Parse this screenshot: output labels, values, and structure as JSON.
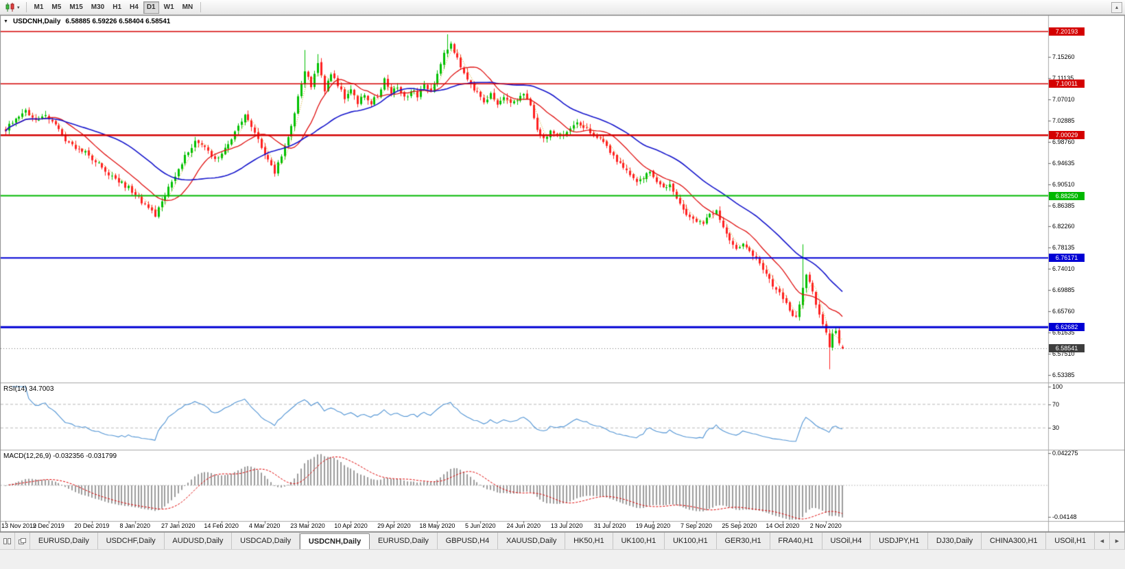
{
  "icons": {
    "dropdown": "▼",
    "caret": "▾",
    "collapse_up": "▴",
    "scroll_left": "◄",
    "scroll_right": "►"
  },
  "toolbar": {
    "timeframes": [
      {
        "label": "M1",
        "active": false
      },
      {
        "label": "M5",
        "active": false
      },
      {
        "label": "M15",
        "active": false
      },
      {
        "label": "M30",
        "active": false
      },
      {
        "label": "H1",
        "active": false
      },
      {
        "label": "H4",
        "active": false
      },
      {
        "label": "D1",
        "active": true
      },
      {
        "label": "W1",
        "active": false
      },
      {
        "label": "MN",
        "active": false
      }
    ]
  },
  "chart": {
    "title_symbol": "USDCNH,Daily",
    "title_ohlc": "6.58885 6.59226 6.58404 6.58541",
    "price_axis_labels": [
      "7.15260",
      "7.11135",
      "7.07010",
      "7.02885",
      "6.98760",
      "6.94635",
      "6.90510",
      "6.86385",
      "6.82260",
      "6.78135",
      "6.74010",
      "6.69885",
      "6.65760",
      "6.61635",
      "6.57510",
      "6.53385"
    ],
    "hlines": [
      {
        "label": "7.20193",
        "price": 7.20193,
        "color": "#d40000",
        "width": 1.5
      },
      {
        "label": "7.10011",
        "price": 7.10011,
        "color": "#d40000",
        "width": 1.5
      },
      {
        "label": "7.00029",
        "price": 7.00029,
        "color": "#d40000",
        "width": 2.5
      },
      {
        "label": "6.88250",
        "price": 6.8825,
        "color": "#00b800",
        "width": 2
      },
      {
        "label": "6.76171",
        "price": 6.76171,
        "color": "#0000d4",
        "width": 2
      },
      {
        "label": "6.62682",
        "price": 6.62682,
        "color": "#0000d4",
        "width": 3
      }
    ],
    "current_price": {
      "label": "6.58541",
      "price": 6.58541,
      "color": "#3d3d3d"
    },
    "date_labels": [
      "13 Nov 2019",
      "2 Dec 2019",
      "20 Dec 2019",
      "8 Jan 2020",
      "27 Jan 2020",
      "14 Feb 2020",
      "4 Mar 2020",
      "23 Mar 2020",
      "10 Apr 2020",
      "29 Apr 2020",
      "18 May 2020",
      "5 Jun 2020",
      "24 Jun 2020",
      "13 Jul 2020",
      "31 Jul 2020",
      "19 Aug 2020",
      "7 Sep 2020",
      "25 Sep 2020",
      "14 Oct 2020",
      "2 Nov 2020"
    ]
  },
  "rsi": {
    "label": "RSI(14) 34.7003",
    "period": 14,
    "value": 34.7003,
    "line_color": "#4f93d4",
    "levels": [
      {
        "label": "100",
        "value": 100
      },
      {
        "label": "70",
        "value": 70
      },
      {
        "label": "30",
        "value": 30
      }
    ]
  },
  "macd": {
    "label": "MACD(12,26,9) -0.032356 -0.031799",
    "fast": 12,
    "slow": 26,
    "signal": 9,
    "macd_value": -0.032356,
    "signal_value": -0.031799,
    "top_label": "0.042275",
    "top_value": 0.042275,
    "bottom_label": "-0.04148",
    "bottom_value": -0.04148,
    "hist_color": "#9c9c9c",
    "signal_color": "#e00000"
  },
  "chart_data": {
    "type": "candlestick",
    "symbol": "USDCNH",
    "period": "Daily",
    "bars": 253,
    "label_every_bars": 13,
    "ohlc_current": {
      "open": 6.58885,
      "high": 6.59226,
      "low": 6.58404,
      "close": 6.58541
    },
    "colors": {
      "up": "#00C000",
      "down": "#FF2020"
    },
    "price_range": {
      "max": 7.2339,
      "min": 6.5192
    },
    "ma": [
      {
        "name": "ma-fast",
        "period": 4,
        "color": "#C8A000",
        "style": "dot",
        "width": 1
      },
      {
        "name": "ma-mid",
        "period": 13,
        "color": "#E01010",
        "style": "solid",
        "width": 1.3
      },
      {
        "name": "ma-slow",
        "period": 34,
        "color": "#1414CC",
        "style": "solid",
        "width": 1.6
      }
    ],
    "wick_events": [
      {
        "i": 90,
        "high": 7.166
      },
      {
        "i": 94,
        "high": 7.158
      },
      {
        "i": 133,
        "high": 7.1965
      },
      {
        "i": 240,
        "high": 6.788
      },
      {
        "i": 248,
        "low": 6.545
      }
    ],
    "price_anchors": [
      [
        0,
        7.012
      ],
      [
        3,
        7.032
      ],
      [
        6,
        7.045
      ],
      [
        9,
        7.028
      ],
      [
        12,
        7.042
      ],
      [
        15,
        7.018
      ],
      [
        18,
        6.992
      ],
      [
        21,
        6.975
      ],
      [
        24,
        6.965
      ],
      [
        27,
        6.948
      ],
      [
        30,
        6.932
      ],
      [
        33,
        6.915
      ],
      [
        36,
        6.902
      ],
      [
        39,
        6.888
      ],
      [
        42,
        6.862
      ],
      [
        45,
        6.845
      ],
      [
        48,
        6.885
      ],
      [
        51,
        6.922
      ],
      [
        54,
        6.958
      ],
      [
        57,
        6.988
      ],
      [
        60,
        6.975
      ],
      [
        63,
        6.952
      ],
      [
        66,
        6.972
      ],
      [
        69,
        7.005
      ],
      [
        72,
        7.038
      ],
      [
        75,
        7.008
      ],
      [
        78,
        6.962
      ],
      [
        81,
        6.928
      ],
      [
        84,
        6.978
      ],
      [
        87,
        7.045
      ],
      [
        90,
        7.125
      ],
      [
        92,
        7.095
      ],
      [
        94,
        7.142
      ],
      [
        96,
        7.088
      ],
      [
        98,
        7.122
      ],
      [
        100,
        7.098
      ],
      [
        102,
        7.072
      ],
      [
        104,
        7.088
      ],
      [
        106,
        7.065
      ],
      [
        108,
        7.082
      ],
      [
        110,
        7.062
      ],
      [
        112,
        7.078
      ],
      [
        114,
        7.108
      ],
      [
        116,
        7.082
      ],
      [
        118,
        7.092
      ],
      [
        120,
        7.072
      ],
      [
        122,
        7.088
      ],
      [
        124,
        7.078
      ],
      [
        126,
        7.098
      ],
      [
        128,
        7.088
      ],
      [
        130,
        7.118
      ],
      [
        132,
        7.162
      ],
      [
        134,
        7.178
      ],
      [
        136,
        7.148
      ],
      [
        138,
        7.122
      ],
      [
        140,
        7.098
      ],
      [
        142,
        7.082
      ],
      [
        144,
        7.068
      ],
      [
        146,
        7.078
      ],
      [
        148,
        7.062
      ],
      [
        150,
        7.072
      ],
      [
        152,
        7.062
      ],
      [
        154,
        7.072
      ],
      [
        156,
        7.078
      ],
      [
        158,
        7.062
      ],
      [
        160,
        7.008
      ],
      [
        162,
        6.995
      ],
      [
        164,
        7.008
      ],
      [
        166,
        6.998
      ],
      [
        168,
        7.005
      ],
      [
        170,
        7.012
      ],
      [
        172,
        7.028
      ],
      [
        174,
        7.018
      ],
      [
        176,
        7.005
      ],
      [
        178,
        6.995
      ],
      [
        180,
        6.985
      ],
      [
        182,
        6.968
      ],
      [
        184,
        6.952
      ],
      [
        186,
        6.938
      ],
      [
        188,
        6.922
      ],
      [
        190,
        6.912
      ],
      [
        192,
        6.918
      ],
      [
        194,
        6.928
      ],
      [
        196,
        6.912
      ],
      [
        198,
        6.895
      ],
      [
        200,
        6.902
      ],
      [
        202,
        6.878
      ],
      [
        204,
        6.855
      ],
      [
        206,
        6.842
      ],
      [
        208,
        6.835
      ],
      [
        210,
        6.828
      ],
      [
        212,
        6.845
      ],
      [
        214,
        6.852
      ],
      [
        216,
        6.825
      ],
      [
        218,
        6.798
      ],
      [
        220,
        6.778
      ],
      [
        222,
        6.788
      ],
      [
        224,
        6.778
      ],
      [
        226,
        6.758
      ],
      [
        228,
        6.738
      ],
      [
        230,
        6.718
      ],
      [
        232,
        6.702
      ],
      [
        234,
        6.685
      ],
      [
        236,
        6.658
      ],
      [
        238,
        6.645
      ],
      [
        240,
        6.702
      ],
      [
        241,
        6.728
      ],
      [
        242,
        6.712
      ],
      [
        243,
        6.692
      ],
      [
        244,
        6.668
      ],
      [
        245,
        6.648
      ],
      [
        246,
        6.632
      ],
      [
        247,
        6.615
      ],
      [
        248,
        6.585
      ],
      [
        249,
        6.612
      ],
      [
        250,
        6.618
      ],
      [
        251,
        6.6
      ],
      [
        252,
        6.58541
      ]
    ]
  },
  "tabs": {
    "items": [
      {
        "label": "EURUSD,Daily",
        "active": false
      },
      {
        "label": "USDCHF,Daily",
        "active": false
      },
      {
        "label": "AUDUSD,Daily",
        "active": false
      },
      {
        "label": "USDCAD,Daily",
        "active": false
      },
      {
        "label": "USDCNH,Daily",
        "active": true
      },
      {
        "label": "EURUSD,Daily",
        "active": false
      },
      {
        "label": "GBPUSD,H4",
        "active": false
      },
      {
        "label": "XAUUSD,Daily",
        "active": false
      },
      {
        "label": "HK50,H1",
        "active": false
      },
      {
        "label": "UK100,H1",
        "active": false
      },
      {
        "label": "UK100,H1",
        "active": false
      },
      {
        "label": "GER30,H1",
        "active": false
      },
      {
        "label": "FRA40,H1",
        "active": false
      },
      {
        "label": "USOil,H4",
        "active": false
      },
      {
        "label": "USDJPY,H1",
        "active": false
      },
      {
        "label": "DJ30,Daily",
        "active": false
      },
      {
        "label": "CHINA300,H1",
        "active": false
      },
      {
        "label": "USOil,H1",
        "active": false
      }
    ]
  }
}
